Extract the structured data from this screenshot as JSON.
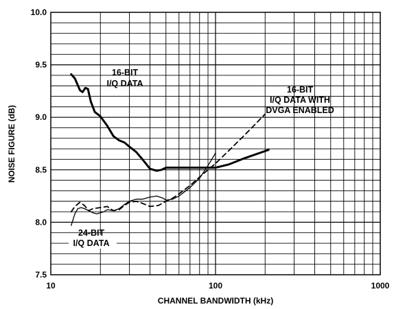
{
  "chart_data": {
    "type": "line",
    "x_scale": "log",
    "xlim": [
      10,
      1000
    ],
    "ylim": [
      7.5,
      10.0
    ],
    "xlabel": "CHANNEL BANDWIDTH (kHz)",
    "ylabel": "NOISE FIGURE (dB)",
    "x_ticks": [
      "10",
      "100",
      "1000"
    ],
    "y_ticks": [
      "7.5",
      "8.0",
      "8.5",
      "9.0",
      "9.5",
      "10.0"
    ],
    "grid": true,
    "series": [
      {
        "style": "thick-solid",
        "x": [
          13.3,
          14,
          15,
          15.6,
          16.2,
          16.8,
          17.5,
          18.5,
          20,
          22,
          24,
          26,
          28,
          30,
          33,
          36,
          40,
          44,
          47,
          50,
          55,
          60,
          70,
          80,
          90,
          100,
          120,
          150,
          210
        ],
        "values": [
          9.41,
          9.37,
          9.26,
          9.24,
          9.28,
          9.27,
          9.15,
          9.05,
          9.01,
          8.92,
          8.82,
          8.78,
          8.76,
          8.72,
          8.67,
          8.6,
          8.51,
          8.49,
          8.5,
          8.52,
          8.52,
          8.52,
          8.52,
          8.52,
          8.52,
          8.52,
          8.55,
          8.61,
          8.69
        ]
      },
      {
        "style": "dashed",
        "x": [
          13.3,
          14,
          15,
          16,
          17,
          18,
          20,
          22,
          24,
          26,
          28,
          30,
          33,
          36,
          40,
          45,
          50,
          55,
          60,
          70,
          80,
          90,
          100,
          120,
          150,
          200
        ],
        "values": [
          8.1,
          8.15,
          8.19,
          8.16,
          8.11,
          8.13,
          8.14,
          8.15,
          8.11,
          8.12,
          8.16,
          8.19,
          8.2,
          8.18,
          8.15,
          8.16,
          8.2,
          8.23,
          8.27,
          8.35,
          8.43,
          8.5,
          8.56,
          8.68,
          8.83,
          9.03
        ]
      },
      {
        "style": "thin-solid",
        "x": [
          13.3,
          14,
          14.6,
          15.3,
          16,
          17,
          18,
          19,
          20,
          21,
          22,
          24,
          26,
          28,
          30,
          33,
          36,
          40,
          44,
          48,
          50,
          55,
          60,
          70,
          80,
          90,
          100
        ],
        "values": [
          7.97,
          8.08,
          8.13,
          8.14,
          8.13,
          8.11,
          8.09,
          8.08,
          8.09,
          8.1,
          8.12,
          8.11,
          8.13,
          8.17,
          8.2,
          8.22,
          8.22,
          8.24,
          8.25,
          8.23,
          8.21,
          8.22,
          8.25,
          8.33,
          8.42,
          8.54,
          8.66
        ]
      }
    ],
    "annotations": [
      {
        "lines": [
          "16-BIT",
          "I/Q DATA"
        ]
      },
      {
        "lines": [
          "16-BIT",
          "I/Q DATA WITH",
          "DVGA ENABLED"
        ]
      },
      {
        "lines": [
          "24-BIT",
          "I/Q DATA"
        ]
      }
    ]
  }
}
